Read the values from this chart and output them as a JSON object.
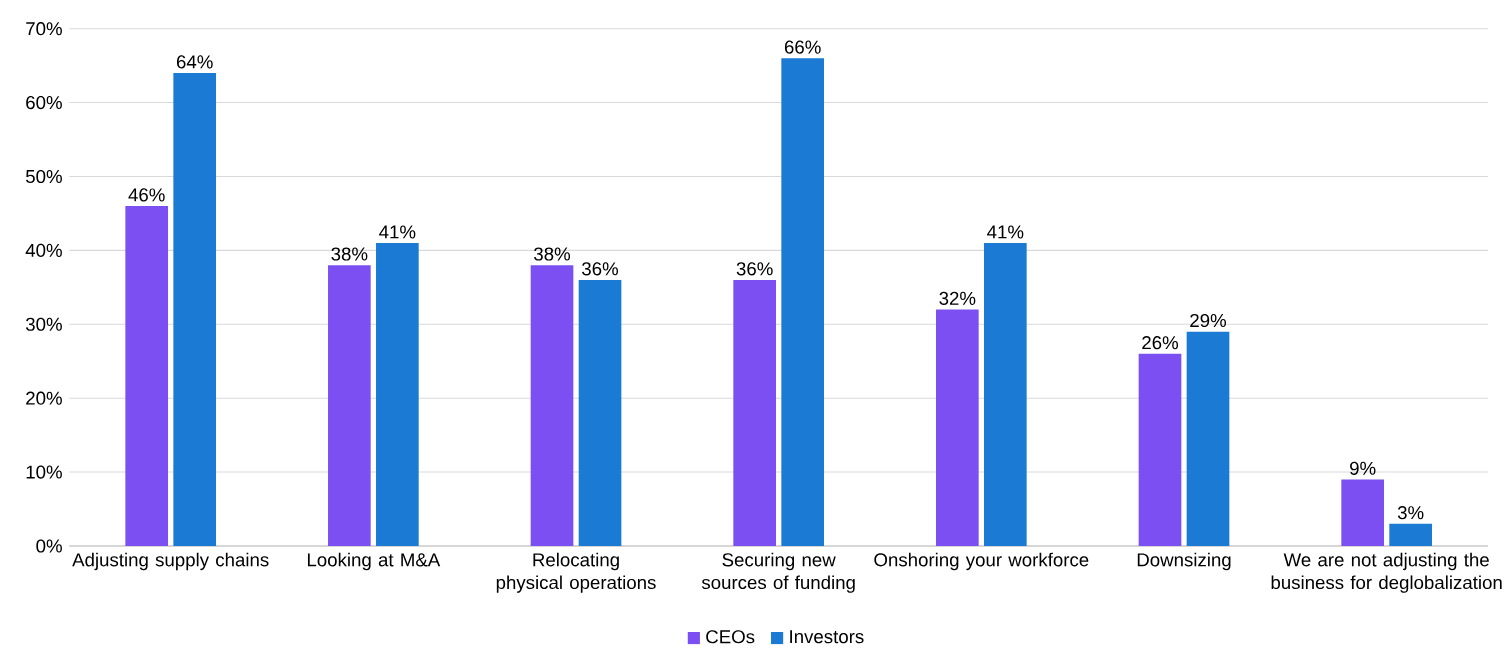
{
  "chart_data": {
    "type": "bar",
    "categories": [
      "Adjusting supply chains",
      "Looking at M&A",
      "Relocating physical operations",
      "Securing new sources of funding",
      "Onshoring your workforce",
      "Downsizing",
      "We are not adjusting the business for deglobalization"
    ],
    "series": [
      {
        "name": "CEOs",
        "color": "#7b4ff2",
        "values": [
          46,
          38,
          38,
          36,
          32,
          26,
          9
        ],
        "value_labels": [
          "46%",
          "38%",
          "38%",
          "36%",
          "32%",
          "26%",
          "9%"
        ]
      },
      {
        "name": "Investors",
        "color": "#1a7ad4",
        "values": [
          64,
          41,
          36,
          66,
          41,
          29,
          3
        ],
        "value_labels": [
          "64%",
          "41%",
          "36%",
          "66%",
          "41%",
          "29%",
          "3%"
        ]
      }
    ],
    "ylim": [
      0,
      70
    ],
    "yticks": [
      {
        "value": 0,
        "label": "0%"
      },
      {
        "value": 10,
        "label": "10%"
      },
      {
        "value": 20,
        "label": "20%"
      },
      {
        "value": 30,
        "label": "30%"
      },
      {
        "value": 40,
        "label": "40%"
      },
      {
        "value": 50,
        "label": "50%"
      },
      {
        "value": 60,
        "label": "60%"
      },
      {
        "value": 70,
        "label": "70%"
      }
    ],
    "grid": "y",
    "legend": "bottom"
  }
}
